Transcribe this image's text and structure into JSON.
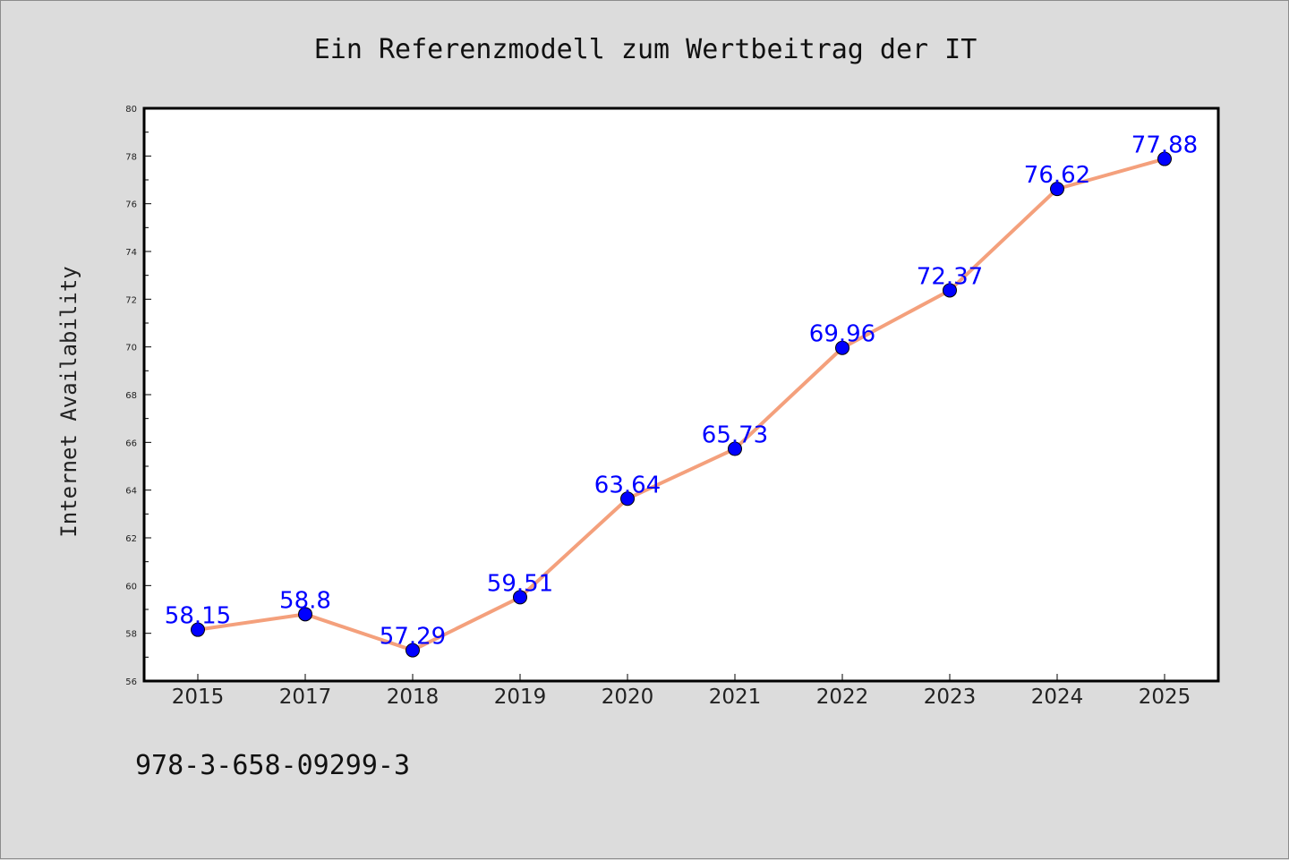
{
  "chart_data": {
    "type": "line",
    "title": "Ein Referenzmodell zum Wertbeitrag der IT",
    "xlabel": "",
    "ylabel": "Internet Availability",
    "categories": [
      "2015",
      "2017",
      "2018",
      "2019",
      "2020",
      "2021",
      "2022",
      "2023",
      "2024",
      "2025"
    ],
    "series": [
      {
        "values": [
          58.15,
          58.8,
          57.29,
          59.51,
          63.64,
          65.73,
          69.96,
          72.37,
          76.62,
          77.88
        ],
        "labels": [
          "58.15",
          "58.8",
          "57.29",
          "59.51",
          "63.64",
          "65.73",
          "69.96",
          "72.37",
          "76.62",
          "77.88"
        ]
      }
    ],
    "ylim": [
      56,
      80
    ],
    "yticks": [
      "56",
      "58",
      "60",
      "62",
      "64",
      "66",
      "68",
      "70",
      "72",
      "74",
      "76",
      "78",
      "80"
    ],
    "grid": false,
    "colors": {
      "line": "#f4a07c",
      "marker": "#0000ff",
      "data_label": "#0000ff",
      "background": "#dcdcdc",
      "plot_background": "#ffffff"
    }
  },
  "footer": {
    "isbn": "978-3-658-09299-3"
  }
}
